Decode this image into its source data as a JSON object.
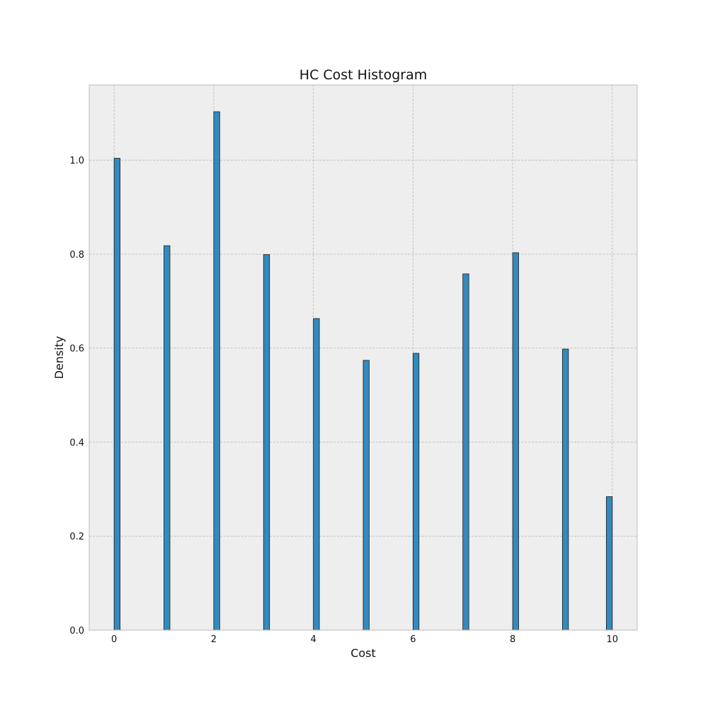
{
  "chart_data": {
    "type": "bar",
    "title": "HC Cost Histogram",
    "xlabel": "Cost",
    "ylabel": "Density",
    "xlim": [
      -0.5,
      10.5
    ],
    "ylim": [
      0,
      1.16
    ],
    "xticks": [
      0,
      2,
      4,
      6,
      8,
      10
    ],
    "yticks": [
      0.0,
      0.2,
      0.4,
      0.6,
      0.8,
      1.0
    ],
    "ytick_labels": [
      "0.0",
      "0.2",
      "0.4",
      "0.6",
      "0.8",
      "1.0"
    ],
    "grid": true,
    "bar_width": 0.12,
    "bars": [
      {
        "x": 0.06,
        "value": 1.004
      },
      {
        "x": 1.06,
        "value": 0.818
      },
      {
        "x": 2.06,
        "value": 1.103
      },
      {
        "x": 3.06,
        "value": 0.799
      },
      {
        "x": 4.06,
        "value": 0.663
      },
      {
        "x": 5.06,
        "value": 0.574
      },
      {
        "x": 6.06,
        "value": 0.589
      },
      {
        "x": 7.06,
        "value": 0.758
      },
      {
        "x": 8.06,
        "value": 0.803
      },
      {
        "x": 9.06,
        "value": 0.598
      },
      {
        "x": 9.94,
        "value": 0.284
      }
    ],
    "colors": {
      "bar_fill": "#348ABD",
      "bar_edge": "#1a1a1a",
      "plot_bg": "#EEEEEE",
      "grid": "#b8b8b8",
      "frame": "#bcbcbc"
    }
  }
}
